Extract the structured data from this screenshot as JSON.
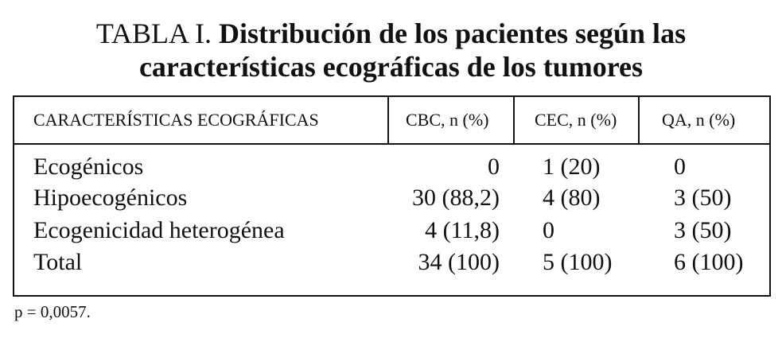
{
  "title": {
    "label": "TABLA I.",
    "lines": [
      "Distribución de los pacientes según las",
      "características ecográficas de los tumores"
    ]
  },
  "table": {
    "header": [
      "CARACTERÍSTICAS ECOGRÁFICAS",
      "CBC, n (%)",
      "CEC, n (%)",
      "QA, n (%)"
    ],
    "rows": [
      [
        "Ecogénicos",
        "0",
        "1 (20)",
        "0"
      ],
      [
        "Hipoecogénicos",
        "30 (88,2)",
        "4 (80)",
        "3 (50)"
      ],
      [
        "Ecogenicidad heterogénea",
        "4 (11,8)",
        "0",
        "3 (50)"
      ],
      [
        "Total",
        "34 (100)",
        "5 (100)",
        "6 (100)"
      ]
    ]
  },
  "footnote": "p = 0,0057."
}
